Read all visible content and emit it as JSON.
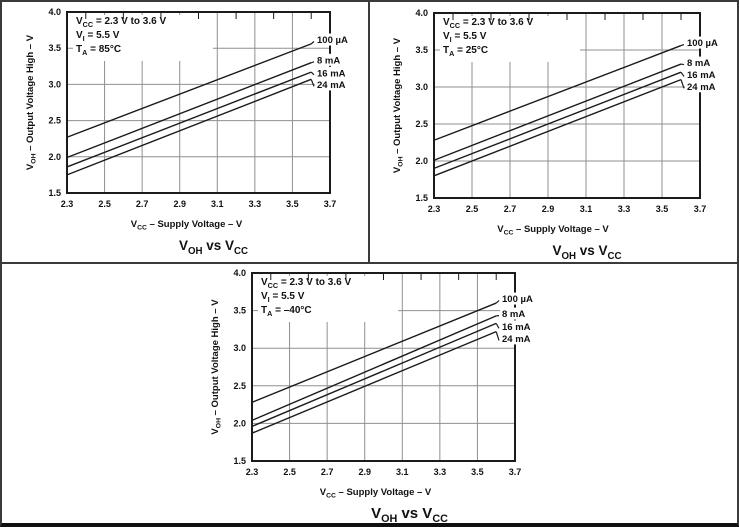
{
  "figure": {
    "description": "Three output-voltage-high vs supply-voltage characteristic graphs",
    "background": "#ffffff"
  },
  "colors": {
    "frame": "#1b1b1b",
    "grid": "#8f8f8f",
    "series_line": "#1b1b1b",
    "text": "#111111",
    "panel_border": "#3a3a3a",
    "bottom_bar": "#101010",
    "background": "#ffffff"
  },
  "chart_data": [
    {
      "id": "voh-vs-vcc-85c",
      "type": "line",
      "title": "V{OH} vs V{CC}",
      "xlabel": "V{CC} – Supply Voltage – V",
      "ylabel": "V{OH} – Output Voltage High – V",
      "conditions": [
        "V{CC} = 2.3 V to 3.6 V",
        "V{I} = 5.5 V",
        "T{A} = 85°C"
      ],
      "xlim": [
        2.3,
        3.7
      ],
      "ylim": [
        1.5,
        4.0
      ],
      "x_ticks": [
        "2.3",
        "2.5",
        "2.7",
        "2.9",
        "3.1",
        "3.3",
        "3.5",
        "3.7"
      ],
      "y_ticks": [
        "1.5",
        "2.0",
        "2.5",
        "3.0",
        "3.5",
        "4.0"
      ],
      "grid": true,
      "legend": "line-end-labels",
      "series": [
        {
          "label": "100 µA",
          "x": [
            2.3,
            3.6
          ],
          "y": [
            2.27,
            3.56
          ],
          "label_y": 3.62
        },
        {
          "label": "8 mA",
          "x": [
            2.3,
            3.6
          ],
          "y": [
            1.99,
            3.3
          ],
          "label_y": 3.34
        },
        {
          "label": "16 mA",
          "x": [
            2.3,
            3.6
          ],
          "y": [
            1.86,
            3.17
          ],
          "label_y": 3.16
        },
        {
          "label": "24 mA",
          "x": [
            2.3,
            3.6
          ],
          "y": [
            1.75,
            3.07
          ],
          "label_y": 3.0
        }
      ]
    },
    {
      "id": "voh-vs-vcc-25c",
      "type": "line",
      "title": "V{OH} vs V{CC}",
      "xlabel": "V{CC} – Supply Voltage – V",
      "ylabel": "V{OH} – Output Voltage High – V",
      "conditions": [
        "V{CC} = 2.3 V to 3.6 V",
        "V{I} = 5.5 V",
        "T{A} = 25°C"
      ],
      "xlim": [
        2.3,
        3.7
      ],
      "ylim": [
        1.5,
        4.0
      ],
      "x_ticks": [
        "2.3",
        "2.5",
        "2.7",
        "2.9",
        "3.1",
        "3.3",
        "3.5",
        "3.7"
      ],
      "y_ticks": [
        "1.5",
        "2.0",
        "2.5",
        "3.0",
        "3.5",
        "4.0"
      ],
      "grid": true,
      "legend": "line-end-labels",
      "series": [
        {
          "label": "100 µA",
          "x": [
            2.3,
            3.6
          ],
          "y": [
            2.28,
            3.56
          ],
          "label_y": 3.6
        },
        {
          "label": "8 mA",
          "x": [
            2.3,
            3.6
          ],
          "y": [
            2.01,
            3.31
          ],
          "label_y": 3.33
        },
        {
          "label": "16 mA",
          "x": [
            2.3,
            3.6
          ],
          "y": [
            1.9,
            3.2
          ],
          "label_y": 3.17
        },
        {
          "label": "24 mA",
          "x": [
            2.3,
            3.6
          ],
          "y": [
            1.8,
            3.1
          ],
          "label_y": 3.01
        }
      ]
    },
    {
      "id": "voh-vs-vcc-m40c",
      "type": "line",
      "title": "V{OH} vs V{CC}",
      "xlabel": "V{CC} – Supply Voltage – V",
      "ylabel": "V{OH} – Output Voltage High – V",
      "conditions": [
        "V{CC} = 2.3 V to 3.6 V",
        "V{I} = 5.5 V",
        "T{A} = –40°C"
      ],
      "xlim": [
        2.3,
        3.7
      ],
      "ylim": [
        1.5,
        4.0
      ],
      "x_ticks": [
        "2.3",
        "2.5",
        "2.7",
        "2.9",
        "3.1",
        "3.3",
        "3.5",
        "3.7"
      ],
      "y_ticks": [
        "1.5",
        "2.0",
        "2.5",
        "3.0",
        "3.5",
        "4.0"
      ],
      "grid": true,
      "legend": "line-end-labels",
      "series": [
        {
          "label": "100 µA",
          "x": [
            2.3,
            3.6
          ],
          "y": [
            2.28,
            3.6
          ],
          "label_y": 3.66
        },
        {
          "label": "8 mA",
          "x": [
            2.3,
            3.6
          ],
          "y": [
            2.04,
            3.43
          ],
          "label_y": 3.46
        },
        {
          "label": "16 mA",
          "x": [
            2.3,
            3.6
          ],
          "y": [
            1.96,
            3.33
          ],
          "label_y": 3.29
        },
        {
          "label": "24 mA",
          "x": [
            2.3,
            3.6
          ],
          "y": [
            1.87,
            3.22
          ],
          "label_y": 3.13
        }
      ]
    }
  ]
}
